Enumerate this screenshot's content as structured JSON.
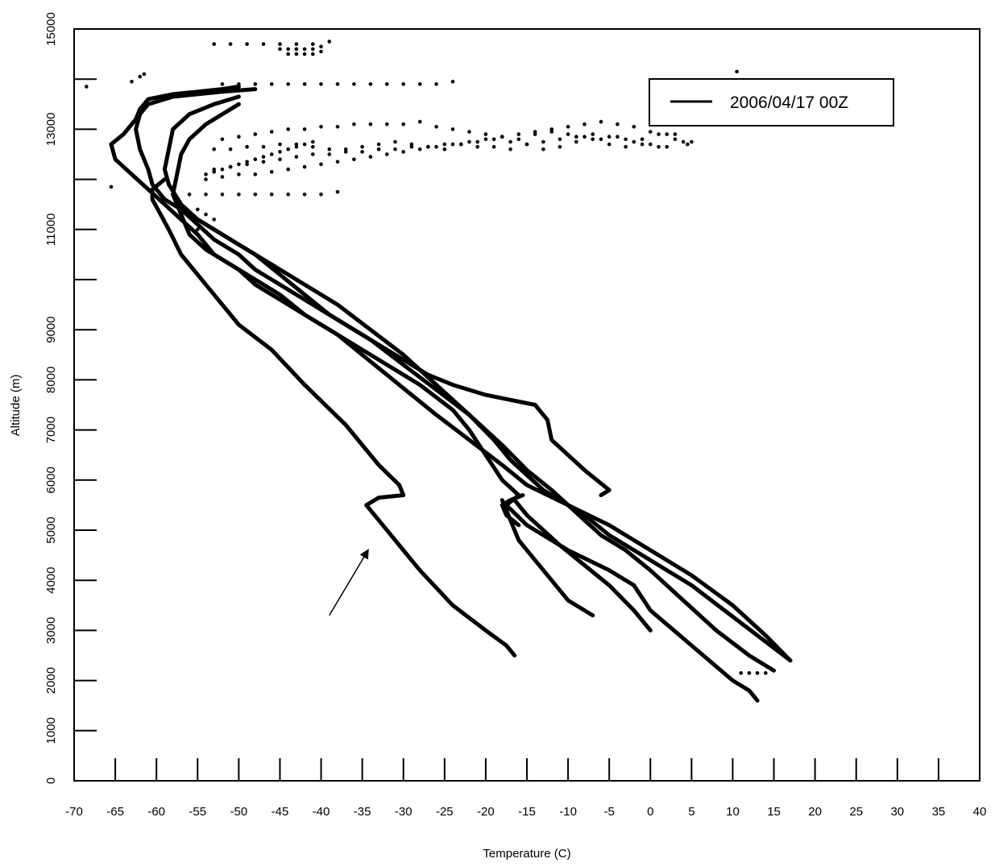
{
  "chart_data": {
    "type": "line",
    "title": "",
    "xlabel": "Temperature (C)",
    "ylabel": "Altitude (m)",
    "xlim": [
      -70,
      40
    ],
    "ylim": [
      0,
      15000
    ],
    "x_ticks": [
      -70,
      -65,
      -60,
      -55,
      -50,
      -45,
      -40,
      -35,
      -30,
      -25,
      -20,
      -15,
      -10,
      -5,
      0,
      5,
      10,
      15,
      20,
      25,
      30,
      35,
      40
    ],
    "y_ticks": [
      0,
      1000,
      2000,
      3000,
      4000,
      5000,
      6000,
      7000,
      8000,
      9000,
      10000,
      11000,
      12000,
      13000,
      14000,
      15000
    ],
    "y_tick_labels": [
      "0",
      "1000",
      "2000",
      "3000",
      "4000",
      "5000",
      "6000",
      "7000",
      "8000",
      "9000",
      "",
      "11000",
      "",
      "13000",
      "",
      "15000"
    ],
    "grid": false,
    "legend_position": "top-right",
    "legend": [
      "2006/04/17 00Z"
    ],
    "series": [
      {
        "name": "2006/04/17 00Z",
        "style": "line",
        "x": [
          -16.5,
          -17.5,
          -20,
          -24,
          -28,
          -30,
          -33,
          -34.5,
          -33,
          -30,
          -30.5,
          -33,
          -37,
          -42,
          -46,
          -50,
          -53,
          -55,
          -57,
          -58.5,
          -59.5,
          -60.5,
          -60.5,
          -59
        ],
        "y": [
          2500,
          2700,
          3000,
          3500,
          4200,
          4600,
          5200,
          5500,
          5650,
          5700,
          5900,
          6300,
          7100,
          7900,
          8600,
          9100,
          9700,
          10100,
          10500,
          11000,
          11300,
          11600,
          11800,
          12000
        ]
      },
      {
        "name": "",
        "style": "line",
        "x": [
          13,
          12,
          10,
          5,
          0,
          -2,
          -5,
          -10,
          -15,
          -17.5,
          -16,
          -18,
          -20,
          -22,
          -24,
          -28,
          -33,
          -38,
          -42,
          -45,
          -48,
          -50,
          -53,
          -55,
          -57,
          -59,
          -61,
          -63,
          -65,
          -65.5,
          -64,
          -62.5,
          -62,
          -61,
          -58,
          -55,
          -52,
          -50
        ],
        "y": [
          1600,
          1800,
          2000,
          2700,
          3400,
          3900,
          4200,
          4600,
          5100,
          5500,
          5700,
          6000,
          6500,
          7000,
          7400,
          7900,
          8400,
          8900,
          9300,
          9600,
          9900,
          10200,
          10500,
          10900,
          11200,
          11500,
          11800,
          12100,
          12400,
          12700,
          12900,
          13200,
          13400,
          13600,
          13700,
          13750,
          13800,
          13850
        ]
      },
      {
        "name": "",
        "style": "line",
        "x": [
          17,
          14,
          10,
          5,
          0,
          -5,
          -10,
          -13,
          -15,
          -17,
          -19,
          -22,
          -26,
          -30,
          -34,
          -38,
          -42,
          -45,
          -48,
          -50,
          -53,
          -55,
          -57,
          -59,
          -60.5,
          -61,
          -62,
          -62.5,
          -62,
          -61,
          -58,
          -55,
          -52,
          -48
        ],
        "y": [
          2400,
          2900,
          3500,
          4100,
          4600,
          5100,
          5500,
          5800,
          6100,
          6400,
          6800,
          7300,
          7800,
          8300,
          8800,
          9200,
          9600,
          9900,
          10200,
          10500,
          10800,
          11100,
          11400,
          11600,
          11900,
          12200,
          12600,
          13000,
          13300,
          13500,
          13650,
          13700,
          13750,
          13800
        ]
      },
      {
        "name": "",
        "style": "line",
        "x": [
          15,
          12,
          8,
          4,
          0,
          -3,
          -6,
          -8,
          -10,
          -12,
          -15,
          -18,
          -22,
          -26,
          -30,
          -34,
          -38,
          -42,
          -46,
          -49,
          -52,
          -55,
          -57,
          -58.5,
          -59,
          -58.5,
          -58,
          -56,
          -53,
          -50
        ],
        "y": [
          2200,
          2500,
          3000,
          3600,
          4200,
          4600,
          4900,
          5200,
          5500,
          5800,
          6200,
          6700,
          7300,
          7900,
          8500,
          9000,
          9500,
          9900,
          10300,
          10600,
          10900,
          11200,
          11500,
          11900,
          12200,
          12600,
          13000,
          13300,
          13500,
          13650
        ]
      },
      {
        "name": "",
        "style": "line",
        "x": [
          17,
          13,
          9,
          5,
          0,
          -5,
          -8,
          -10,
          -15,
          -18,
          -22,
          -26,
          -29,
          -32,
          -35,
          -38,
          -42,
          -45,
          -48,
          -51,
          -54,
          -56,
          -57,
          -58,
          -57.5,
          -57,
          -56,
          -54,
          -52,
          -50
        ],
        "y": [
          2400,
          2900,
          3400,
          3900,
          4400,
          4900,
          5300,
          5500,
          5900,
          6300,
          6800,
          7300,
          7700,
          8100,
          8500,
          8900,
          9300,
          9700,
          10000,
          10300,
          10600,
          10900,
          11300,
          11700,
          12100,
          12500,
          12800,
          13100,
          13300,
          13500
        ]
      },
      {
        "name": "",
        "style": "line",
        "x": [
          -6,
          -5,
          -8,
          -10,
          -12,
          -12.5,
          -14,
          -17,
          -20,
          -24,
          -27,
          -30,
          -33,
          -36,
          -39,
          -42,
          -45,
          -48,
          -51,
          -54,
          -56
        ],
        "y": [
          5700,
          5800,
          6200,
          6500,
          6800,
          7200,
          7500,
          7600,
          7700,
          7900,
          8100,
          8400,
          8700,
          9000,
          9300,
          9700,
          10100,
          10500,
          10800,
          11100,
          11300
        ]
      },
      {
        "name": "",
        "style": "line",
        "x": [
          -7,
          -10,
          -12,
          -14,
          -16,
          -17,
          -17.5,
          -18
        ],
        "y": [
          3300,
          3600,
          4000,
          4400,
          4800,
          5200,
          5400,
          5600
        ]
      },
      {
        "name": "",
        "style": "line",
        "x": [
          0,
          -2,
          -5,
          -8,
          -11,
          -13,
          -15,
          -16.5
        ],
        "y": [
          3000,
          3400,
          3900,
          4300,
          4700,
          5000,
          5300,
          5600
        ]
      },
      {
        "name": "",
        "style": "line",
        "x": [
          -16,
          -17.5,
          -18,
          -17,
          -15.5
        ],
        "y": [
          5100,
          5300,
          5500,
          5600,
          5700
        ]
      },
      {
        "name": "",
        "style": "points",
        "x": [
          -68.5,
          -65.5,
          -63,
          -62,
          -61.5,
          -53,
          -51,
          -49,
          -47,
          -45,
          -43,
          -41,
          -39
        ],
        "y": [
          13850,
          11850,
          13950,
          14050,
          14100,
          14700,
          14700,
          14700,
          14700,
          14700,
          14700,
          14700,
          14750
        ]
      },
      {
        "name": "",
        "style": "points",
        "x": [
          -45,
          -44,
          -43,
          -42,
          -41,
          -40,
          -44,
          -43,
          -42,
          -41,
          -40,
          10.5
        ],
        "y": [
          14600,
          14600,
          14600,
          14600,
          14600,
          14650,
          14500,
          14500,
          14500,
          14500,
          14550,
          14150
        ]
      },
      {
        "name": "",
        "style": "points",
        "x": [
          -52,
          -50,
          -48,
          -46,
          -44,
          -42,
          -40,
          -38,
          -36,
          -34,
          -32,
          -30,
          -28,
          -26,
          -24
        ],
        "y": [
          13900,
          13900,
          13900,
          13900,
          13900,
          13900,
          13900,
          13900,
          13900,
          13900,
          13900,
          13900,
          13900,
          13900,
          13950
        ]
      },
      {
        "name": "",
        "style": "points",
        "x": [
          -52,
          -50,
          -48,
          -46,
          -44,
          -42,
          -40,
          -38,
          -36,
          -34,
          -32,
          -30,
          -28,
          -26,
          -24,
          -22,
          -20,
          -18,
          -16,
          -14,
          -12,
          -10,
          -8,
          -6,
          -4,
          -2,
          0,
          2,
          4
        ],
        "y": [
          12800,
          12850,
          12900,
          12950,
          13000,
          13000,
          13050,
          13050,
          13100,
          13100,
          13100,
          13100,
          13150,
          13050,
          13000,
          12950,
          12900,
          12850,
          12800,
          12900,
          12950,
          12900,
          12850,
          12800,
          12850,
          12750,
          12700,
          12650,
          12750
        ]
      },
      {
        "name": "",
        "style": "points",
        "x": [
          -53,
          -51,
          -49,
          -47,
          -45,
          -43,
          -41,
          -39,
          -37,
          -35,
          -33,
          -31,
          -29,
          -27,
          -25,
          -23,
          -21,
          -19,
          -17,
          -15,
          -13,
          -11,
          -9,
          -7,
          -5,
          -3,
          -1,
          1,
          3,
          5
        ],
        "y": [
          12200,
          12250,
          12300,
          12350,
          12400,
          12450,
          12500,
          12500,
          12550,
          12550,
          12600,
          12600,
          12650,
          12650,
          12700,
          12700,
          12650,
          12650,
          12600,
          12700,
          12750,
          12800,
          12850,
          12900,
          12850,
          12800,
          12700,
          12650,
          12800,
          12750
        ]
      },
      {
        "name": "",
        "style": "points",
        "x": [
          -54,
          -52,
          -50,
          -48,
          -46,
          -44,
          -42,
          -40,
          -38,
          -36,
          -34,
          -32,
          -30,
          -28,
          -26,
          -24,
          -22,
          -20,
          -18,
          -16,
          -14,
          -12,
          -10,
          -8,
          -6,
          -4,
          -2,
          0,
          2
        ],
        "y": [
          12000,
          12050,
          12100,
          12100,
          12150,
          12200,
          12250,
          12300,
          12350,
          12400,
          12450,
          12500,
          12550,
          12600,
          12650,
          12700,
          12750,
          12800,
          12850,
          12900,
          12950,
          13000,
          13050,
          13100,
          13150,
          13100,
          13050,
          12950,
          12900
        ]
      },
      {
        "name": "",
        "style": "points",
        "x": [
          -56,
          -54,
          -52,
          -50,
          -48,
          -46,
          -44,
          -42,
          -40,
          -38,
          -55,
          -54,
          -53,
          -55,
          -54
        ],
        "y": [
          11700,
          11700,
          11700,
          11700,
          11700,
          11700,
          11700,
          11700,
          11700,
          11750,
          11400,
          11300,
          11200,
          11000,
          11100
        ]
      },
      {
        "name": "",
        "style": "points",
        "x": [
          -53,
          -51,
          -49,
          -47,
          -45,
          -43,
          -41,
          -39,
          -37,
          -35,
          -33,
          -31,
          -29,
          -27,
          -25,
          -23,
          -21,
          -19,
          -17,
          -15,
          -13,
          -11,
          -9,
          -7,
          -5,
          -3,
          -1,
          1,
          3,
          4.5
        ],
        "y": [
          12600,
          12600,
          12650,
          12650,
          12700,
          12700,
          12650,
          12600,
          12600,
          12650,
          12700,
          12750,
          12700,
          12650,
          12600,
          12700,
          12750,
          12800,
          12750,
          12700,
          12600,
          12650,
          12750,
          12800,
          12700,
          12650,
          12800,
          12900,
          12900,
          12700
        ]
      },
      {
        "name": "",
        "style": "points",
        "x": [
          -54,
          -53,
          -52,
          -51,
          -50,
          -49,
          -48,
          -47,
          -46,
          -45,
          -44,
          -43,
          -42,
          -41
        ],
        "y": [
          12100,
          12150,
          12200,
          12250,
          12300,
          12350,
          12400,
          12450,
          12500,
          12550,
          12600,
          12650,
          12700,
          12750
        ]
      },
      {
        "name": "",
        "style": "points",
        "x": [
          11,
          12,
          13,
          14
        ],
        "y": [
          2150,
          2150,
          2150,
          2150
        ]
      }
    ],
    "annotations": [
      {
        "type": "arrow",
        "from": [
          -39,
          3300
        ],
        "to": [
          -34.3,
          4600
        ]
      }
    ]
  }
}
